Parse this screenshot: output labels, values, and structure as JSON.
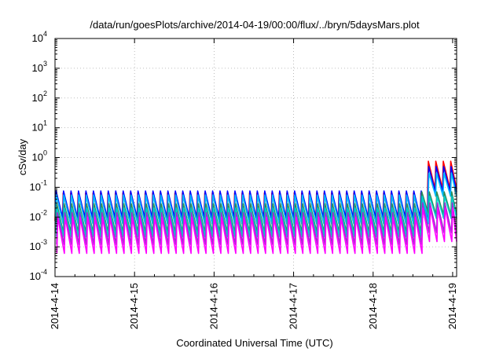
{
  "chart_data": {
    "type": "line",
    "title": "/data/run/goesPlots/archive/2014-04-19/00:00/flux/../bryn/5daysMars.plot",
    "xlabel": "Coordinated Universal Time (UTC)",
    "ylabel": "cSv/day",
    "x_ticks": [
      "2014-4-14",
      "2014-4-15",
      "2014-4-16",
      "2014-4-17",
      "2014-4-18",
      "2014-4-19"
    ],
    "x_range_days": [
      0,
      5.05
    ],
    "y_scale": "log",
    "ylim": [
      0.0001,
      10000
    ],
    "y_ticks": [
      {
        "base": "10",
        "exp": "-4"
      },
      {
        "base": "10",
        "exp": "-3"
      },
      {
        "base": "10",
        "exp": "-2"
      },
      {
        "base": "10",
        "exp": "-1"
      },
      {
        "base": "10",
        "exp": "0"
      },
      {
        "base": "10",
        "exp": "1"
      },
      {
        "base": "10",
        "exp": "2"
      },
      {
        "base": "10",
        "exp": "3"
      },
      {
        "base": "10",
        "exp": "4"
      }
    ],
    "grid": true,
    "sawtooth_period_days": 0.0937,
    "event_start_day": 4.6,
    "series": [
      {
        "color": "#ff0000",
        "peak": 0.065,
        "trough": 0.0075,
        "event_peak": 0.75,
        "event_trough": 0.09
      },
      {
        "color": "#0000ff",
        "peak": 0.075,
        "trough": 0.009,
        "event_peak": 0.5,
        "event_trough": 0.07
      },
      {
        "color": "#00bfff",
        "peak": 0.055,
        "trough": 0.006,
        "event_peak": 0.3,
        "event_trough": 0.05
      },
      {
        "color": "#2e8b57",
        "peak": 0.028,
        "trough": 0.003,
        "event_peak": 0.07,
        "event_trough": 0.012
      },
      {
        "color": "#00cccc",
        "peak": 0.02,
        "trough": 0.0022,
        "event_peak": 0.05,
        "event_trough": 0.009
      },
      {
        "color": "#9932cc",
        "peak": 0.014,
        "trough": 0.0012,
        "event_peak": 0.03,
        "event_trough": 0.003
      },
      {
        "color": "#ff00ff",
        "peak": 0.01,
        "trough": 0.0006,
        "event_peak": 0.02,
        "event_trough": 0.0015
      }
    ]
  }
}
